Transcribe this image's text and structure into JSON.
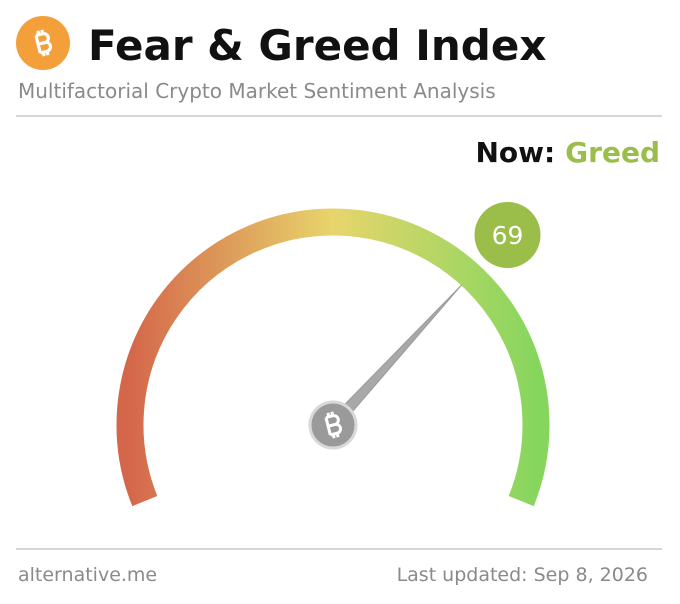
{
  "chart_data": {
    "type": "gauge",
    "title": "Fear & Greed Index",
    "subtitle": "Multifactorial Crypto Market Sentiment Analysis",
    "now_label": "Now:",
    "classification": "Greed",
    "value": 69,
    "range": [
      0,
      100
    ],
    "gauge_colors": [
      "#d4674a",
      "#e8d56c",
      "#86d65e"
    ],
    "value_color": "#9bbd4a",
    "source": "alternative.me",
    "updated": "Last updated: Sep 8, 2026"
  }
}
